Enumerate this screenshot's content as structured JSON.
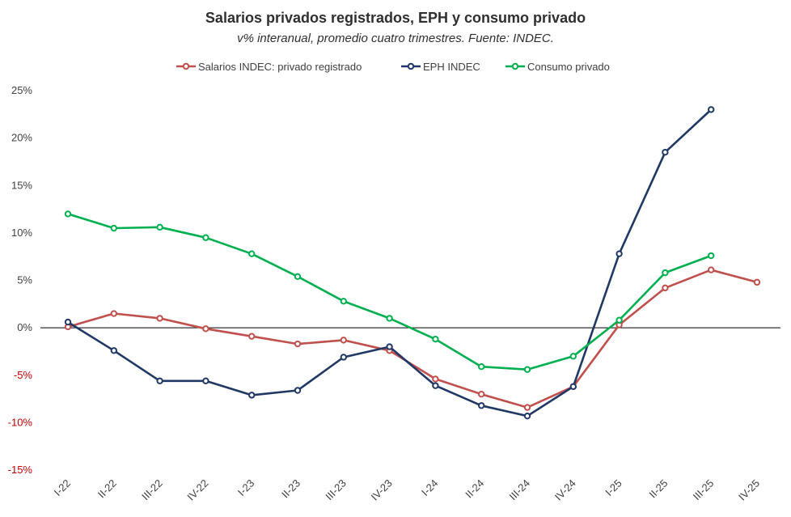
{
  "chart_data": {
    "type": "line",
    "title": "Salarios privados registrados, EPH y consumo privado",
    "subtitle": "v% interanual, promedio cuatro trimestres. Fuente: INDEC.",
    "xlabel": "",
    "ylabel": "",
    "ylim": [
      -15,
      25
    ],
    "yticks": [
      25,
      20,
      15,
      10,
      5,
      0,
      -5,
      -10,
      -15
    ],
    "ytick_labels": [
      "25%",
      "20%",
      "15%",
      "10%",
      "5%",
      "0%",
      "-5%",
      "-10%",
      "-15%"
    ],
    "categories": [
      "I-22",
      "II-22",
      "III-22",
      "IV-22",
      "I-23",
      "II-23",
      "III-23",
      "IV-23",
      "I-24",
      "II-24",
      "III-24",
      "IV-24",
      "I-25",
      "II-25",
      "III-25",
      "IV-25"
    ],
    "grid": false,
    "legend_position": "top",
    "negative_tick_color": "#c00000",
    "series": [
      {
        "name": "Salarios INDEC: privado registrado",
        "color": "#c0504d",
        "values": [
          0.1,
          1.5,
          1.0,
          -0.1,
          -0.9,
          -1.7,
          -1.3,
          -2.4,
          -5.4,
          -7.0,
          -8.4,
          -6.2,
          0.3,
          4.2,
          6.1,
          4.8
        ]
      },
      {
        "name": "EPH INDEC",
        "color": "#203864",
        "values": [
          0.6,
          -2.4,
          -5.6,
          -5.6,
          -7.1,
          -6.6,
          -3.1,
          -2.0,
          -6.1,
          -8.2,
          -9.3,
          -6.2,
          7.8,
          18.5,
          23.0,
          null
        ]
      },
      {
        "name": "Consumo privado",
        "color": "#00b050",
        "values": [
          12.0,
          10.5,
          10.6,
          9.5,
          7.8,
          5.4,
          2.8,
          1.0,
          -1.2,
          -4.1,
          -4.4,
          -3.0,
          0.8,
          5.8,
          7.6,
          null
        ]
      }
    ]
  }
}
